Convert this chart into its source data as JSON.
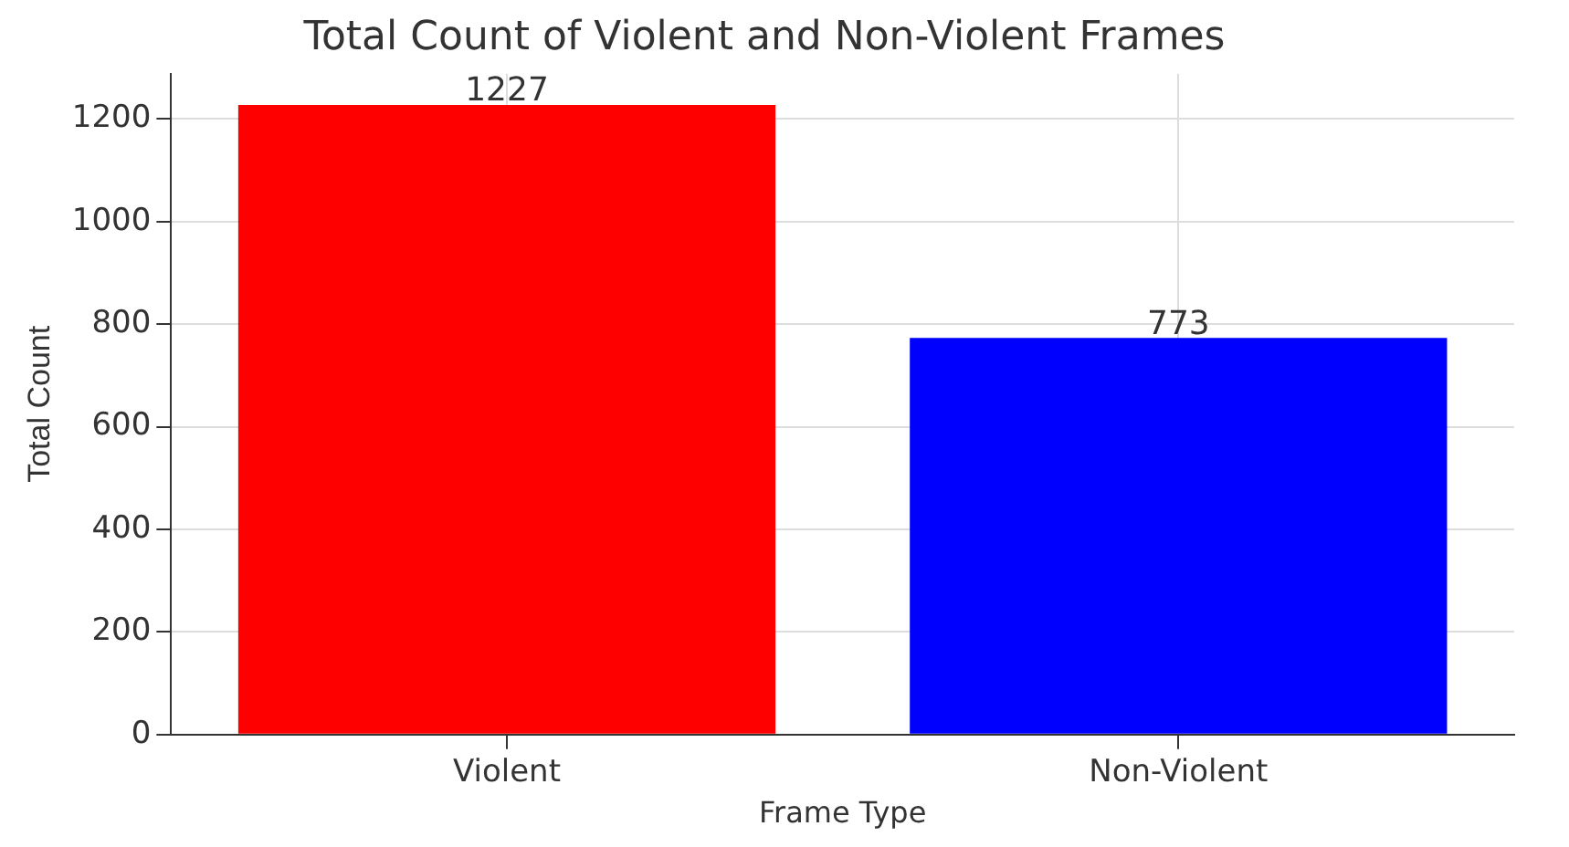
{
  "chart_data": {
    "type": "bar",
    "title": "Total Count of Violent and Non-Violent Frames",
    "xlabel": "Frame Type",
    "ylabel": "Total Count",
    "categories": [
      "Violent",
      "Non-Violent"
    ],
    "values": [
      1227,
      773
    ],
    "colors": [
      "#ff0000",
      "#0000ff"
    ],
    "ylim": [
      0,
      1288
    ],
    "yticks": [
      0,
      200,
      400,
      600,
      800,
      1000,
      1200
    ],
    "grid": true,
    "data_labels": true
  }
}
